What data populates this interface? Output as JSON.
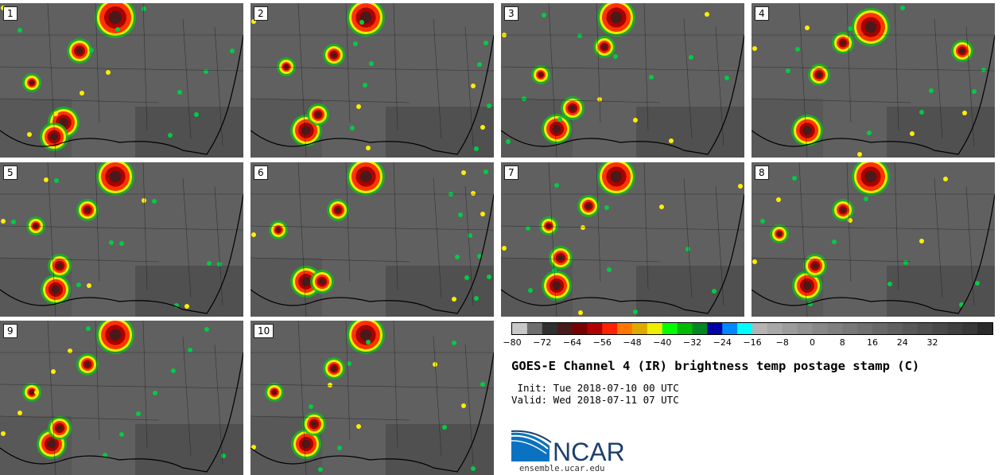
{
  "panels": [
    {
      "label": "1"
    },
    {
      "label": "2"
    },
    {
      "label": "3"
    },
    {
      "label": "4"
    },
    {
      "label": "5"
    },
    {
      "label": "6"
    },
    {
      "label": "7"
    },
    {
      "label": "8"
    },
    {
      "label": "9"
    },
    {
      "label": "10"
    }
  ],
  "colorbar": {
    "ticks": [
      "−80",
      "−72",
      "−64",
      "−56",
      "−48",
      "−40",
      "−32",
      "−24",
      "−16",
      "−8",
      "0",
      "8",
      "16",
      "24",
      "32"
    ],
    "colors": [
      "#c8c8c8",
      "#6e6e6e",
      "#303030",
      "#4a1a1a",
      "#7a0000",
      "#b00000",
      "#ff2200",
      "#ff7700",
      "#ddaa00",
      "#eeee00",
      "#00ff00",
      "#00bb00",
      "#008822",
      "#0000aa",
      "#0088ff",
      "#00ffff",
      "#b4b4b4",
      "#a8a8a8",
      "#9c9c9c",
      "#929292",
      "#888888",
      "#808080",
      "#787878",
      "#707070",
      "#686868",
      "#606060",
      "#585858",
      "#505050",
      "#484848",
      "#404040",
      "#383838",
      "#2a2a2a"
    ]
  },
  "title": "GOES-E Channel 4 (IR) brightness temp postage stamp (C)",
  "init_line": " Init: Tue 2018-07-10 00 UTC",
  "valid_line": "Valid: Wed 2018-07-11 07 UTC",
  "logo": {
    "text": "NCAR",
    "url": "ensemble.ucar.edu",
    "color": "#1c3f6e",
    "accent": "#0a72c0"
  }
}
